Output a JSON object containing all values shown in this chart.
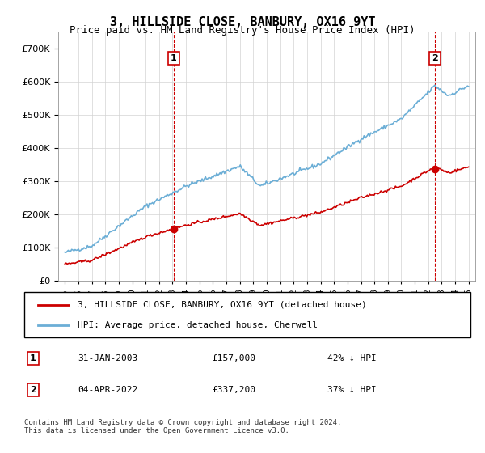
{
  "title": "3, HILLSIDE CLOSE, BANBURY, OX16 9YT",
  "subtitle": "Price paid vs. HM Land Registry's House Price Index (HPI)",
  "sale1_date": "31-JAN-2003",
  "sale1_price": 157000,
  "sale1_label": "42% ↓ HPI",
  "sale2_date": "04-APR-2022",
  "sale2_price": 337200,
  "sale2_label": "37% ↓ HPI",
  "legend_property": "3, HILLSIDE CLOSE, BANBURY, OX16 9YT (detached house)",
  "legend_hpi": "HPI: Average price, detached house, Cherwell",
  "footnote": "Contains HM Land Registry data © Crown copyright and database right 2024.\nThis data is licensed under the Open Government Licence v3.0.",
  "hpi_color": "#6baed6",
  "property_color": "#cc0000",
  "sale_marker_color": "#cc0000",
  "dashed_line_color": "#cc0000",
  "ylim_max": 750000,
  "ylim_min": 0
}
